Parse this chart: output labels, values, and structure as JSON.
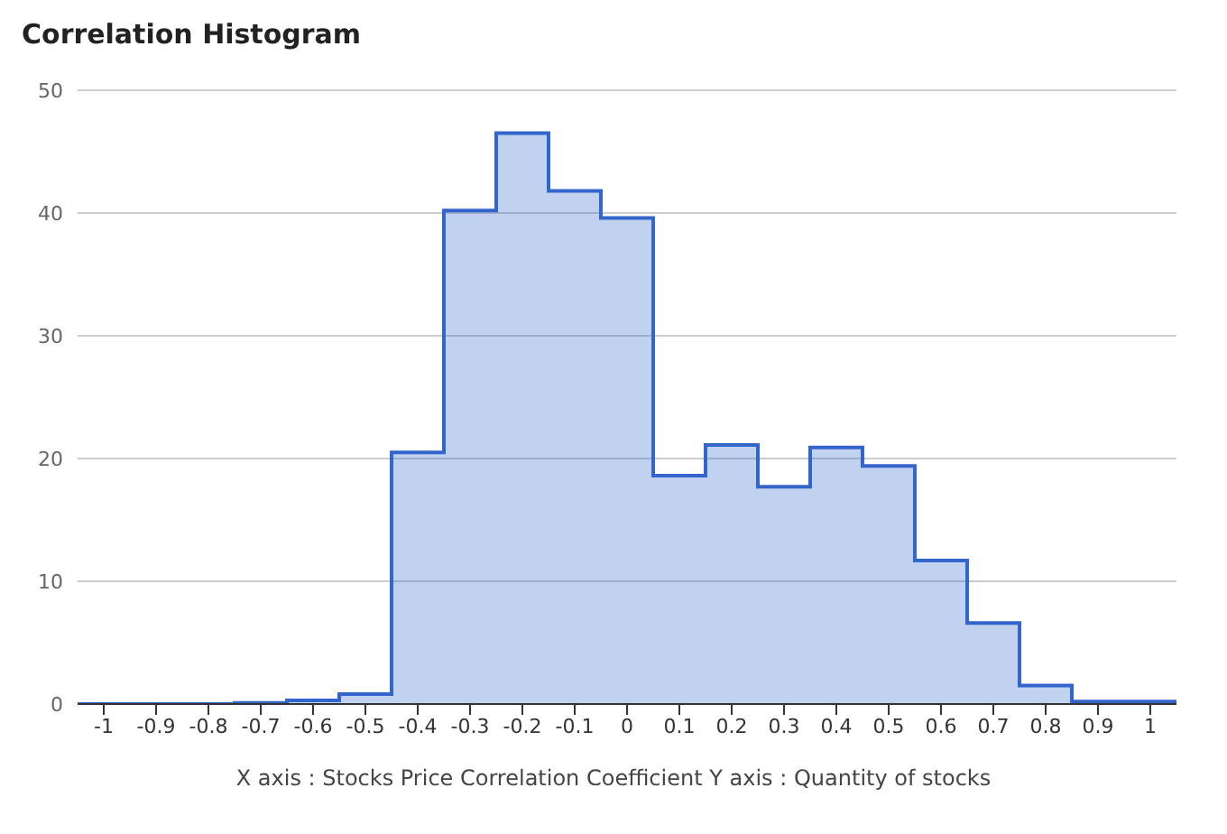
{
  "chart_data": {
    "type": "histogram",
    "title": "Correlation Histogram",
    "xlabel": "X axis : Stocks Price Correlation Coefficient  Y axis : Quantity of stocks",
    "bins": [
      -1.05,
      -0.95,
      -0.85,
      -0.75,
      -0.65,
      -0.55,
      -0.45,
      -0.35,
      -0.25,
      -0.15,
      -0.05,
      0.05,
      0.15,
      0.25,
      0.35,
      0.45,
      0.55,
      0.65,
      0.75,
      0.85,
      0.95,
      1.05
    ],
    "values": [
      0,
      0,
      0,
      0.1,
      0.3,
      0.8,
      20.5,
      40.2,
      46.5,
      41.8,
      39.6,
      18.6,
      21.1,
      17.7,
      20.9,
      19.4,
      11.7,
      6.6,
      1.5,
      0.2,
      0.2
    ],
    "color": "#3366cc",
    "xlim": [
      -1.05,
      1.05
    ],
    "xticks": [
      -1,
      -0.9,
      -0.8,
      -0.7,
      -0.6,
      -0.5,
      -0.4,
      -0.3,
      -0.2,
      -0.1,
      0,
      0.1,
      0.2,
      0.3,
      0.4,
      0.5,
      0.6,
      0.7,
      0.8,
      0.9,
      1
    ],
    "ylim": [
      0,
      50
    ],
    "yticks": [
      0,
      10,
      20,
      30,
      40,
      50
    ],
    "grid": "y"
  }
}
